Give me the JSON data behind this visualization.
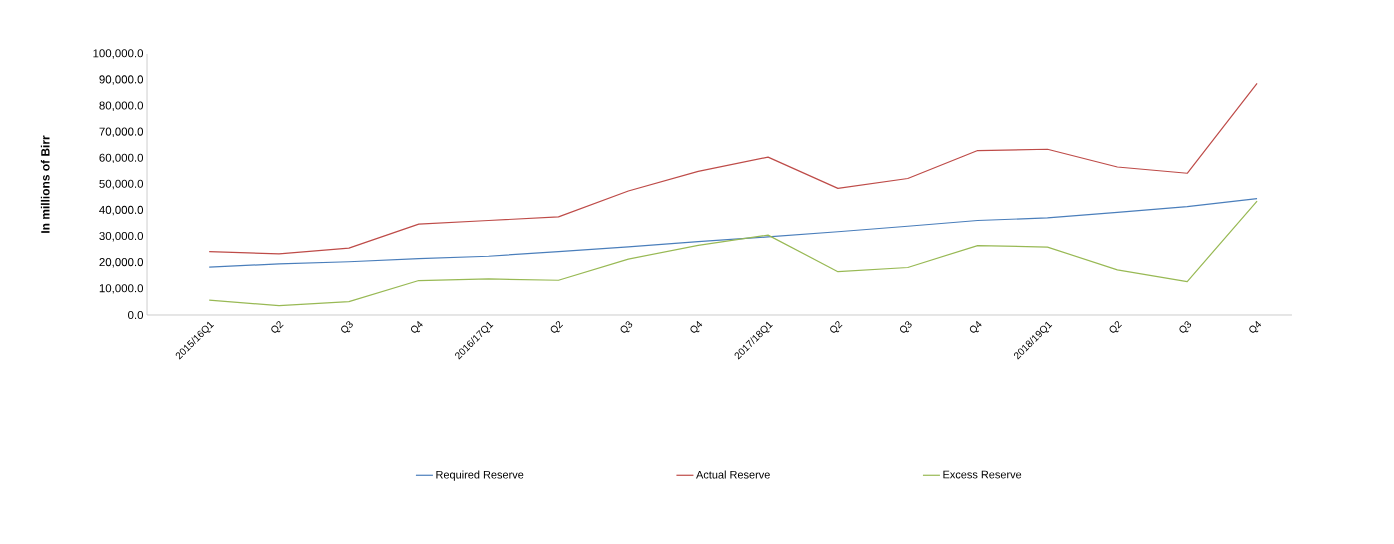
{
  "chart_data": {
    "type": "line",
    "ylabel": "In millions of Birr",
    "categories": [
      "2015/16Q1",
      "Q2",
      "Q3",
      "Q4",
      "2016/17Q1",
      "Q2",
      "Q3",
      "Q4",
      "2017/18Q1",
      "Q2",
      "Q3",
      "Q4",
      "2018/19Q1",
      "Q2",
      "Q3",
      "Q4"
    ],
    "series": [
      {
        "name": "Required Reserve",
        "color": "#4a7ebb",
        "values": [
          18300,
          19600,
          20400,
          21600,
          22500,
          24300,
          26100,
          28100,
          29900,
          31900,
          34000,
          36200,
          37200,
          39300,
          41500,
          44600
        ]
      },
      {
        "name": "Actual Reserve",
        "color": "#be4b48",
        "values": [
          24300,
          23400,
          25600,
          34800,
          36200,
          37600,
          47500,
          55000,
          60500,
          48500,
          52300,
          63000,
          63500,
          56700,
          54300,
          88700
        ]
      },
      {
        "name": "Excess  Reserve",
        "color": "#98b954",
        "values": [
          5700,
          3600,
          5100,
          13200,
          13800,
          13300,
          21400,
          26700,
          30600,
          16600,
          18200,
          26600,
          26000,
          17300,
          12800,
          43600
        ]
      }
    ],
    "ylim": [
      0,
      100000
    ],
    "yticks": [
      {
        "value": 0,
        "label": "0.0"
      },
      {
        "value": 10000,
        "label": "10,000.0"
      },
      {
        "value": 20000,
        "label": "20,000.0"
      },
      {
        "value": 30000,
        "label": "30,000.0"
      },
      {
        "value": 40000,
        "label": "40,000.0"
      },
      {
        "value": 50000,
        "label": "50,000.0"
      },
      {
        "value": 60000,
        "label": "60,000.0"
      },
      {
        "value": 70000,
        "label": "70,000.0"
      },
      {
        "value": 80000,
        "label": "80,000.0"
      },
      {
        "value": 90000,
        "label": "90,000.0"
      },
      {
        "value": 100000,
        "label": "100,000.0"
      }
    ],
    "grid": false,
    "legend": "bottom",
    "marker": "none",
    "line_style": "solid"
  }
}
